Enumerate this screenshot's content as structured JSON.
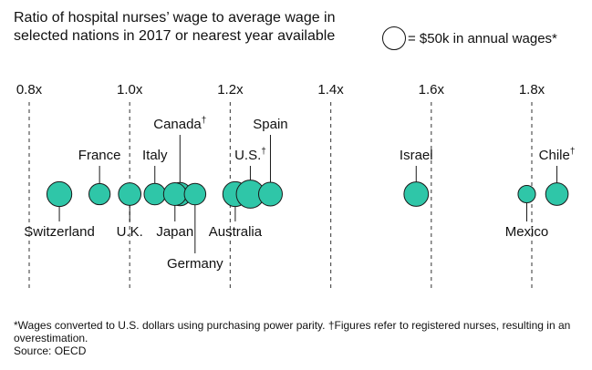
{
  "title": "Ratio of hospital nurses’ wage to average wage in selected nations in 2017 or nearest year available",
  "legend": {
    "label": "= $50k in annual wages*",
    "bubble_value": 50
  },
  "footnote": "*Wages converted to U.S. dollars using purchasing power parity. †Figures refer to registered nurses, resulting in an overestimation.",
  "source": "Source: OECD",
  "colors": {
    "bubble_fill": "#2fc6a8",
    "bubble_stroke": "#1a1a1a",
    "text": "#111111",
    "gridline": "#555555"
  },
  "chart_data": {
    "type": "scatter",
    "x_axis": {
      "ticks": [
        0.8,
        1.0,
        1.2,
        1.4,
        1.6,
        1.8
      ],
      "tick_labels": [
        "0.8x",
        "1.0x",
        "1.2x",
        "1.4x",
        "1.6x",
        "1.8x"
      ],
      "range": [
        0.8,
        1.8
      ],
      "grid": true
    },
    "size_encoding": "annual nurse wage in thousands of US dollars",
    "points": [
      {
        "country": "Switzerland",
        "ratio": 0.86,
        "wage_k": 55,
        "label_side": "below"
      },
      {
        "country": "France",
        "ratio": 0.94,
        "wage_k": 40,
        "label_side": "above"
      },
      {
        "country": "U.K.",
        "ratio": 1.0,
        "wage_k": 45,
        "label_side": "below"
      },
      {
        "country": "Italy",
        "ratio": 1.05,
        "wage_k": 41,
        "label_side": "above"
      },
      {
        "country": "Canada†",
        "ratio": 1.1,
        "wage_k": 48,
        "label_side": "above"
      },
      {
        "country": "Japan",
        "ratio": 1.09,
        "wage_k": 46,
        "label_side": "below"
      },
      {
        "country": "Germany",
        "ratio": 1.13,
        "wage_k": 41,
        "label_side": "below"
      },
      {
        "country": "Australia",
        "ratio": 1.21,
        "wage_k": 55,
        "label_side": "below"
      },
      {
        "country": "U.S.†",
        "ratio": 1.24,
        "wage_k": 70,
        "label_side": "above"
      },
      {
        "country": "Spain",
        "ratio": 1.28,
        "wage_k": 50,
        "label_side": "above"
      },
      {
        "country": "Israel",
        "ratio": 1.57,
        "wage_k": 53,
        "label_side": "above"
      },
      {
        "country": "Mexico",
        "ratio": 1.79,
        "wage_k": 27,
        "label_side": "below"
      },
      {
        "country": "Chile†",
        "ratio": 1.85,
        "wage_k": 45,
        "label_side": "above"
      }
    ]
  }
}
